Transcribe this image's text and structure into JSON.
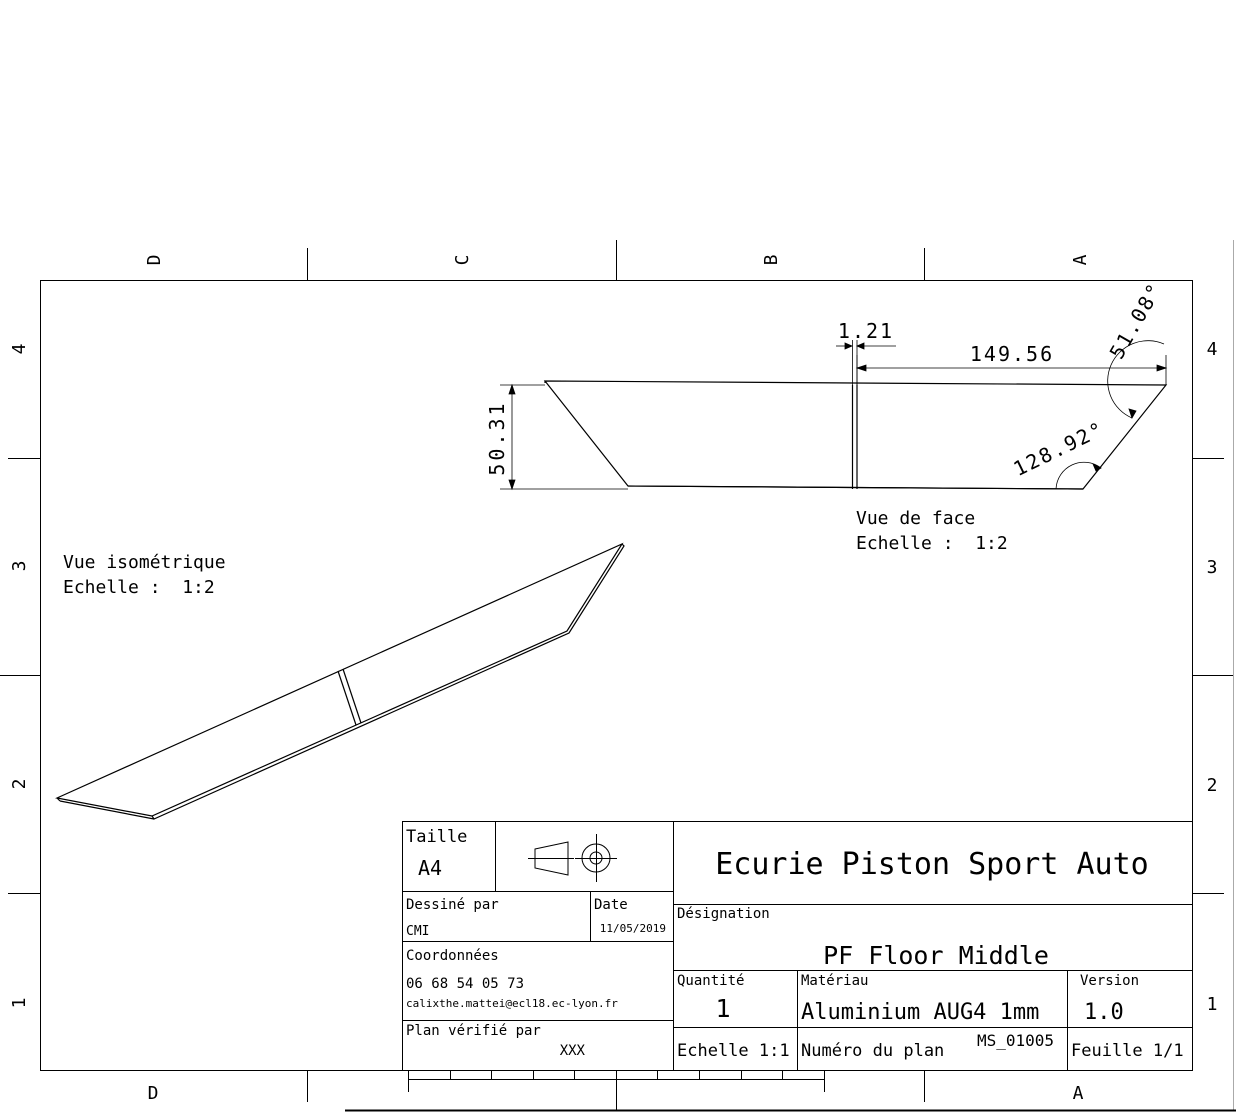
{
  "border": {
    "columns_top": [
      "D",
      "C",
      "B",
      "A"
    ],
    "columns_bottom": [
      "D",
      "",
      "",
      "A"
    ],
    "rows": [
      "4",
      "3",
      "2",
      "1"
    ]
  },
  "front_view": {
    "dim_thickness": "1.21",
    "dim_length": "149.56",
    "dim_height": "50.31",
    "angle_top": "51.08°",
    "angle_bottom": "128.92°",
    "caption_line1": "Vue de face",
    "caption_line2": "Echelle :  1:2"
  },
  "iso_view": {
    "caption_line1": "Vue isométrique",
    "caption_line2": "Echelle :  1:2"
  },
  "title_block": {
    "taille_label": "Taille",
    "taille_value": "A4",
    "company": "Ecurie Piston Sport Auto",
    "dessine_label": "Dessiné par",
    "dessine_value": "CMI",
    "date_label": "Date",
    "date_value": "11/05/2019",
    "designation_label": "Désignation",
    "designation_value": "PF Floor Middle",
    "coordonnees_label": "Coordonnées",
    "phone": "06 68 54 05 73",
    "email": "calixthe.mattei@ecl18.ec-lyon.fr",
    "quantite_label": "Quantité",
    "quantite_value": "1",
    "materiau_label": "Matériau",
    "materiau_value": "Aluminium AUG4 1mm",
    "version_label": "Version",
    "version_value": "1.0",
    "verifie_label": "Plan vérifié par",
    "verifie_value": "XXX",
    "echelle": "Echelle 1:1",
    "numero_label": "Numéro du plan",
    "numero_value": "MS_01005",
    "feuille": "Feuille 1/1"
  }
}
